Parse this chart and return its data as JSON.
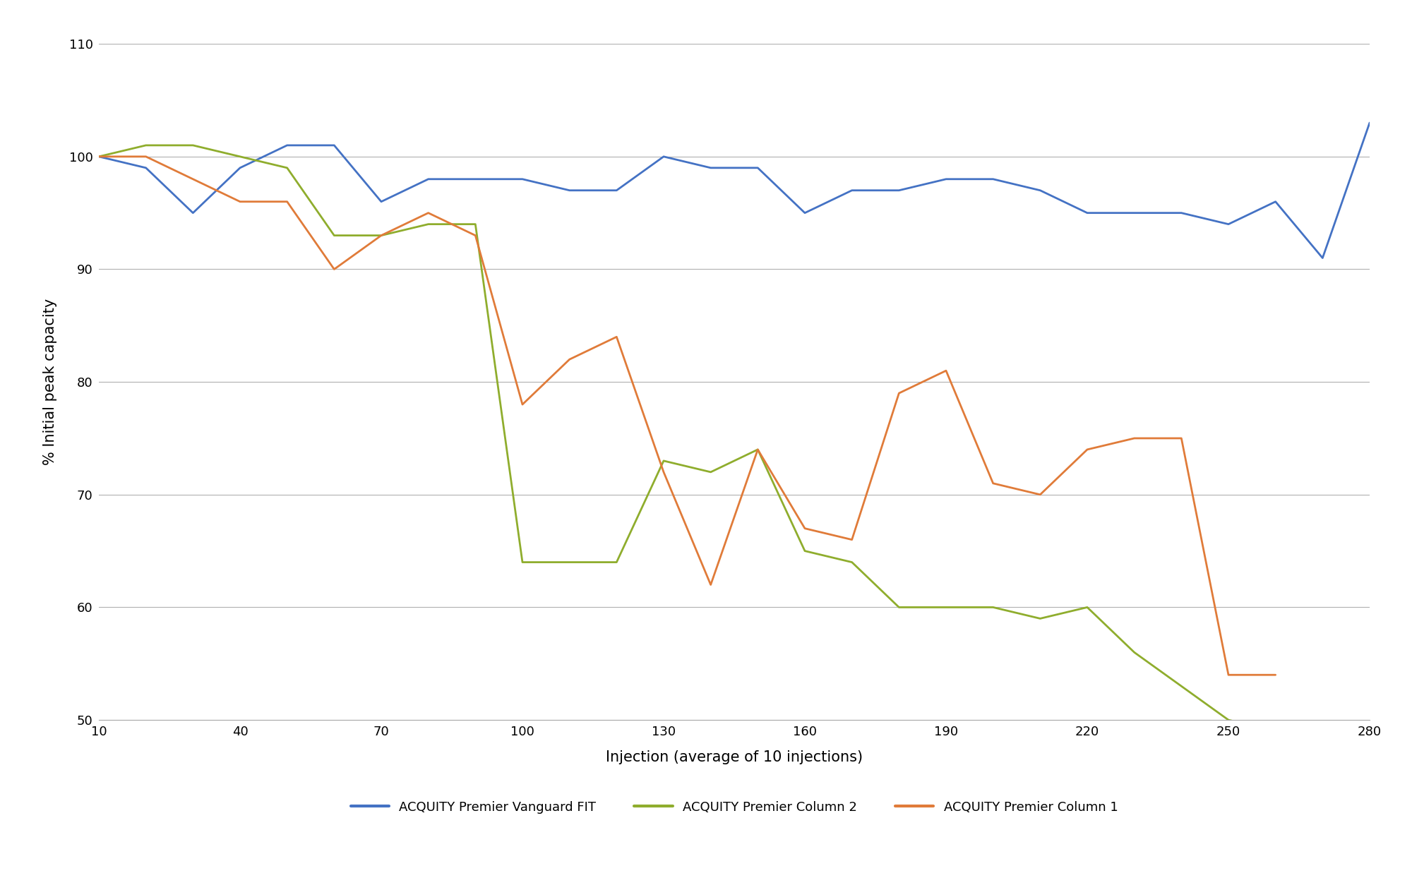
{
  "vanguard_fit": {
    "x": [
      10,
      20,
      30,
      40,
      50,
      60,
      70,
      80,
      90,
      100,
      110,
      120,
      130,
      140,
      150,
      160,
      170,
      180,
      190,
      200,
      210,
      220,
      230,
      240,
      250,
      260,
      270,
      280
    ],
    "y": [
      100,
      99,
      95,
      99,
      101,
      101,
      96,
      98,
      98,
      98,
      97,
      97,
      100,
      99,
      99,
      95,
      97,
      97,
      98,
      98,
      97,
      95,
      95,
      95,
      94,
      96,
      91,
      103
    ]
  },
  "column2": {
    "x": [
      10,
      20,
      30,
      40,
      50,
      60,
      70,
      80,
      90,
      100,
      110,
      120,
      130,
      140,
      150,
      160,
      170,
      180,
      190,
      200,
      210,
      220,
      230,
      240,
      250,
      260
    ],
    "y": [
      100,
      101,
      101,
      100,
      99,
      93,
      93,
      94,
      94,
      64,
      64,
      64,
      73,
      72,
      74,
      65,
      64,
      60,
      60,
      60,
      59,
      60,
      56,
      53,
      50,
      49
    ]
  },
  "column1": {
    "x": [
      10,
      20,
      30,
      40,
      50,
      60,
      70,
      80,
      90,
      100,
      110,
      120,
      130,
      140,
      150,
      160,
      170,
      180,
      190,
      200,
      210,
      220,
      230,
      240,
      250,
      260
    ],
    "y": [
      100,
      100,
      98,
      96,
      96,
      90,
      93,
      95,
      93,
      78,
      82,
      84,
      72,
      62,
      74,
      67,
      66,
      79,
      81,
      71,
      70,
      74,
      75,
      75,
      54,
      54
    ]
  },
  "colors": {
    "vanguard_fit": "#4472C4",
    "column2": "#8FAD2D",
    "column1": "#E07B39"
  },
  "xlim": [
    10,
    280
  ],
  "ylim": [
    50,
    110
  ],
  "xticks": [
    10,
    40,
    70,
    100,
    130,
    160,
    190,
    220,
    250,
    280
  ],
  "yticks": [
    50,
    60,
    70,
    80,
    90,
    100,
    110
  ],
  "xlabel": "Injection (average of 10 injections)",
  "ylabel": "% Initial peak capacity",
  "legend": [
    {
      "label": "ACQUITY Premier Vanguard FIT",
      "color": "#4472C4"
    },
    {
      "label": "ACQUITY Premier Column 2",
      "color": "#8FAD2D"
    },
    {
      "label": "ACQUITY Premier Column 1",
      "color": "#E07B39"
    }
  ],
  "line_width": 2.0,
  "background_color": "#FFFFFF",
  "grid_color": "#B0B0B0"
}
